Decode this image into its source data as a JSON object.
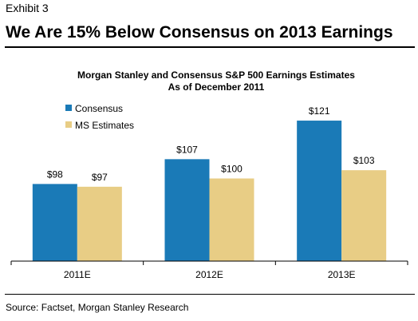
{
  "header": {
    "exhibit": "Exhibit 3",
    "title": "We Are 15% Below Consensus on 2013 Earnings"
  },
  "chart_data": {
    "type": "bar",
    "title": "Morgan Stanley and Consensus S&P 500 Earnings Estimates",
    "subtitle": "As of December 2011",
    "categories": [
      "2011E",
      "2012E",
      "2013E"
    ],
    "series": [
      {
        "name": "Consensus",
        "values": [
          98,
          107,
          121
        ],
        "labels": [
          "$98",
          "$107",
          "$121"
        ],
        "color": "#1a7ab7"
      },
      {
        "name": "MS Estimates",
        "values": [
          97,
          100,
          103
        ],
        "labels": [
          "$97",
          "$100",
          "$103"
        ],
        "color": "#e8cd85"
      }
    ],
    "legend": "top-left",
    "grid": false,
    "ylim": [
      70,
      130
    ],
    "xlabel": "",
    "ylabel": ""
  },
  "footer": {
    "source": "Source: Factset, Morgan Stanley Research"
  }
}
